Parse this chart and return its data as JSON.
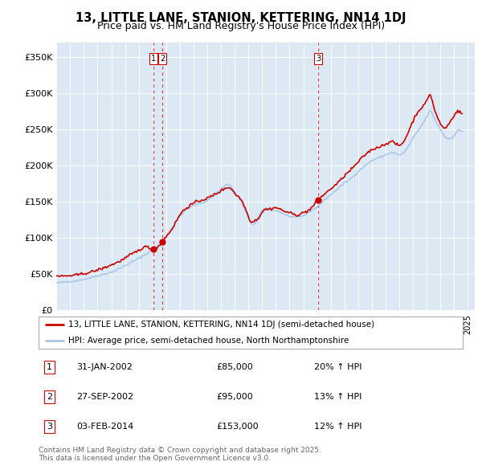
{
  "title": "13, LITTLE LANE, STANION, KETTERING, NN14 1DJ",
  "subtitle": "Price paid vs. HM Land Registry's House Price Index (HPI)",
  "background_color": "#ffffff",
  "plot_bg_color": "#dce9f5",
  "ylim": [
    0,
    370000
  ],
  "yticks": [
    0,
    50000,
    100000,
    150000,
    200000,
    250000,
    300000,
    350000
  ],
  "ytick_labels": [
    "£0",
    "£50K",
    "£100K",
    "£150K",
    "£200K",
    "£250K",
    "£300K",
    "£350K"
  ],
  "legend_line1": "13, LITTLE LANE, STANION, KETTERING, NN14 1DJ (semi-detached house)",
  "legend_line2": "HPI: Average price, semi-detached house, North Northamptonshire",
  "transactions": [
    {
      "num": 1,
      "date": "31-JAN-2002",
      "price": 85000,
      "hpi_pct": "20%",
      "x_year": 2002.08
    },
    {
      "num": 2,
      "date": "27-SEP-2002",
      "price": 95000,
      "hpi_pct": "13%",
      "x_year": 2002.74
    },
    {
      "num": 3,
      "date": "03-FEB-2014",
      "price": 153000,
      "hpi_pct": "12%",
      "x_year": 2014.09
    }
  ],
  "footer": "Contains HM Land Registry data © Crown copyright and database right 2025.\nThis data is licensed under the Open Government Licence v3.0.",
  "hpi_color": "#a8c8e8",
  "price_color": "#cc0000",
  "vline_color": "#cc0000",
  "xmin": 1995,
  "xmax": 2025.5
}
